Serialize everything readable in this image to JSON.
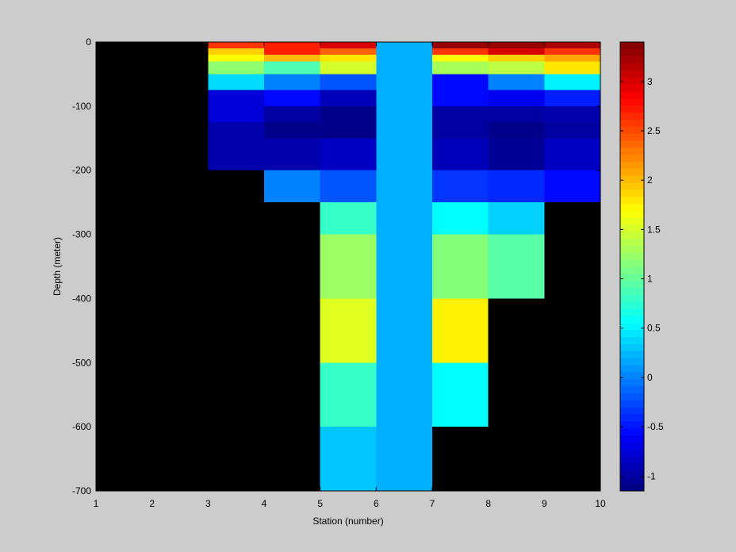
{
  "chart_data": {
    "type": "heatmap",
    "title": "",
    "xlabel": "Station (number)",
    "ylabel": "Depth (meter)",
    "xlim": [
      1,
      10
    ],
    "ylim": [
      -700,
      0
    ],
    "x_ticks": [
      1,
      2,
      3,
      4,
      5,
      6,
      7,
      8,
      9,
      10
    ],
    "y_ticks": [
      0,
      -100,
      -200,
      -300,
      -400,
      -500,
      -600,
      -700
    ],
    "background_color": "#000000",
    "colormap": "jet",
    "clim": [
      -1.15,
      3.4
    ],
    "colorbar_ticks": [
      -1,
      -0.5,
      0,
      0.5,
      1,
      1.5,
      2,
      2.5,
      3
    ],
    "colorbar_location": "right",
    "grid": false,
    "cells": [
      {
        "station": [
          3,
          4
        ],
        "depth": [
          0,
          -10
        ],
        "value": 2.6
      },
      {
        "station": [
          3,
          4
        ],
        "depth": [
          -10,
          -20
        ],
        "value": 1.9
      },
      {
        "station": [
          3,
          4
        ],
        "depth": [
          -20,
          -30
        ],
        "value": 1.7
      },
      {
        "station": [
          3,
          4
        ],
        "depth": [
          -30,
          -50
        ],
        "value": 1.2
      },
      {
        "station": [
          3,
          4
        ],
        "depth": [
          -50,
          -75
        ],
        "value": 0.4
      },
      {
        "station": [
          3,
          4
        ],
        "depth": [
          -75,
          -100
        ],
        "value": -0.75
      },
      {
        "station": [
          3,
          4
        ],
        "depth": [
          -100,
          -125
        ],
        "value": -0.75
      },
      {
        "station": [
          3,
          4
        ],
        "depth": [
          -125,
          -150
        ],
        "value": -0.95
      },
      {
        "station": [
          3,
          4
        ],
        "depth": [
          -150,
          -200
        ],
        "value": -0.95
      },
      {
        "station": [
          4,
          5
        ],
        "depth": [
          0,
          -10
        ],
        "value": 2.7
      },
      {
        "station": [
          4,
          5
        ],
        "depth": [
          -10,
          -20
        ],
        "value": 2.7
      },
      {
        "station": [
          4,
          5
        ],
        "depth": [
          -20,
          -30
        ],
        "value": 2.0
      },
      {
        "station": [
          4,
          5
        ],
        "depth": [
          -30,
          -50
        ],
        "value": 0.9
      },
      {
        "station": [
          4,
          5
        ],
        "depth": [
          -50,
          -75
        ],
        "value": 0.0
      },
      {
        "station": [
          4,
          5
        ],
        "depth": [
          -75,
          -100
        ],
        "value": -0.55
      },
      {
        "station": [
          4,
          5
        ],
        "depth": [
          -100,
          -125
        ],
        "value": -1.0
      },
      {
        "station": [
          4,
          5
        ],
        "depth": [
          -125,
          -150
        ],
        "value": -1.1
      },
      {
        "station": [
          4,
          5
        ],
        "depth": [
          -150,
          -200
        ],
        "value": -0.95
      },
      {
        "station": [
          4,
          5
        ],
        "depth": [
          -200,
          -250
        ],
        "value": 0.0
      },
      {
        "station": [
          5,
          6
        ],
        "depth": [
          0,
          -10
        ],
        "value": 3.0
      },
      {
        "station": [
          5,
          6
        ],
        "depth": [
          -10,
          -20
        ],
        "value": 2.4
      },
      {
        "station": [
          5,
          6
        ],
        "depth": [
          -20,
          -30
        ],
        "value": 1.8
      },
      {
        "station": [
          5,
          6
        ],
        "depth": [
          -30,
          -50
        ],
        "value": 1.5
      },
      {
        "station": [
          5,
          6
        ],
        "depth": [
          -50,
          -75
        ],
        "value": -0.2
      },
      {
        "station": [
          5,
          6
        ],
        "depth": [
          -75,
          -100
        ],
        "value": -0.9
      },
      {
        "station": [
          5,
          6
        ],
        "depth": [
          -100,
          -125
        ],
        "value": -1.1
      },
      {
        "station": [
          5,
          6
        ],
        "depth": [
          -125,
          -150
        ],
        "value": -1.1
      },
      {
        "station": [
          5,
          6
        ],
        "depth": [
          -150,
          -200
        ],
        "value": -0.85
      },
      {
        "station": [
          5,
          6
        ],
        "depth": [
          -200,
          -250
        ],
        "value": -0.2
      },
      {
        "station": [
          5,
          6
        ],
        "depth": [
          -250,
          -300
        ],
        "value": 0.8
      },
      {
        "station": [
          5,
          6
        ],
        "depth": [
          -300,
          -400
        ],
        "value": 1.25
      },
      {
        "station": [
          5,
          6
        ],
        "depth": [
          -400,
          -500
        ],
        "value": 1.55
      },
      {
        "station": [
          5,
          6
        ],
        "depth": [
          -500,
          -600
        ],
        "value": 0.8
      },
      {
        "station": [
          5,
          6
        ],
        "depth": [
          -600,
          -700
        ],
        "value": 0.3
      },
      {
        "station": [
          6,
          7
        ],
        "depth": [
          0,
          -700
        ],
        "value": 0.2
      },
      {
        "station": [
          7,
          8
        ],
        "depth": [
          0,
          -10
        ],
        "value": 3.3
      },
      {
        "station": [
          7,
          8
        ],
        "depth": [
          -10,
          -20
        ],
        "value": 2.6
      },
      {
        "station": [
          7,
          8
        ],
        "depth": [
          -20,
          -30
        ],
        "value": 1.7
      },
      {
        "station": [
          7,
          8
        ],
        "depth": [
          -30,
          -50
        ],
        "value": 1.3
      },
      {
        "station": [
          7,
          8
        ],
        "depth": [
          -50,
          -75
        ],
        "value": -0.55
      },
      {
        "station": [
          7,
          8
        ],
        "depth": [
          -75,
          -100
        ],
        "value": -0.55
      },
      {
        "station": [
          7,
          8
        ],
        "depth": [
          -100,
          -125
        ],
        "value": -1.0
      },
      {
        "station": [
          7,
          8
        ],
        "depth": [
          -125,
          -150
        ],
        "value": -1.0
      },
      {
        "station": [
          7,
          8
        ],
        "depth": [
          -150,
          -200
        ],
        "value": -0.9
      },
      {
        "station": [
          7,
          8
        ],
        "depth": [
          -200,
          -250
        ],
        "value": -0.35
      },
      {
        "station": [
          7,
          8
        ],
        "depth": [
          -250,
          -300
        ],
        "value": 0.55
      },
      {
        "station": [
          7,
          8
        ],
        "depth": [
          -300,
          -400
        ],
        "value": 1.15
      },
      {
        "station": [
          7,
          8
        ],
        "depth": [
          -400,
          -500
        ],
        "value": 1.75
      },
      {
        "station": [
          7,
          8
        ],
        "depth": [
          -500,
          -600
        ],
        "value": 0.55
      },
      {
        "station": [
          8,
          9
        ],
        "depth": [
          0,
          -10
        ],
        "value": 3.3
      },
      {
        "station": [
          8,
          9
        ],
        "depth": [
          -10,
          -20
        ],
        "value": 3.0
      },
      {
        "station": [
          8,
          9
        ],
        "depth": [
          -20,
          -30
        ],
        "value": 1.9
      },
      {
        "station": [
          8,
          9
        ],
        "depth": [
          -30,
          -50
        ],
        "value": 1.4
      },
      {
        "station": [
          8,
          9
        ],
        "depth": [
          -50,
          -75
        ],
        "value": 0.0
      },
      {
        "station": [
          8,
          9
        ],
        "depth": [
          -75,
          -100
        ],
        "value": -0.65
      },
      {
        "station": [
          8,
          9
        ],
        "depth": [
          -100,
          -125
        ],
        "value": -1.0
      },
      {
        "station": [
          8,
          9
        ],
        "depth": [
          -125,
          -150
        ],
        "value": -1.1
      },
      {
        "station": [
          8,
          9
        ],
        "depth": [
          -150,
          -200
        ],
        "value": -1.05
      },
      {
        "station": [
          8,
          9
        ],
        "depth": [
          -200,
          -250
        ],
        "value": -0.4
      },
      {
        "station": [
          8,
          9
        ],
        "depth": [
          -250,
          -300
        ],
        "value": 0.35
      },
      {
        "station": [
          8,
          9
        ],
        "depth": [
          -300,
          -400
        ],
        "value": 0.95
      },
      {
        "station": [
          9,
          10
        ],
        "depth": [
          0,
          -10
        ],
        "value": 3.2
      },
      {
        "station": [
          9,
          10
        ],
        "depth": [
          -10,
          -20
        ],
        "value": 2.6
      },
      {
        "station": [
          9,
          10
        ],
        "depth": [
          -20,
          -30
        ],
        "value": 2.1
      },
      {
        "station": [
          9,
          10
        ],
        "depth": [
          -30,
          -50
        ],
        "value": 1.8
      },
      {
        "station": [
          9,
          10
        ],
        "depth": [
          -50,
          -75
        ],
        "value": 0.5
      },
      {
        "station": [
          9,
          10
        ],
        "depth": [
          -75,
          -100
        ],
        "value": -0.45
      },
      {
        "station": [
          9,
          10
        ],
        "depth": [
          -100,
          -125
        ],
        "value": -0.95
      },
      {
        "station": [
          9,
          10
        ],
        "depth": [
          -125,
          -150
        ],
        "value": -1.0
      },
      {
        "station": [
          9,
          10
        ],
        "depth": [
          -150,
          -200
        ],
        "value": -0.85
      },
      {
        "station": [
          9,
          10
        ],
        "depth": [
          -200,
          -250
        ],
        "value": -0.55
      }
    ]
  }
}
